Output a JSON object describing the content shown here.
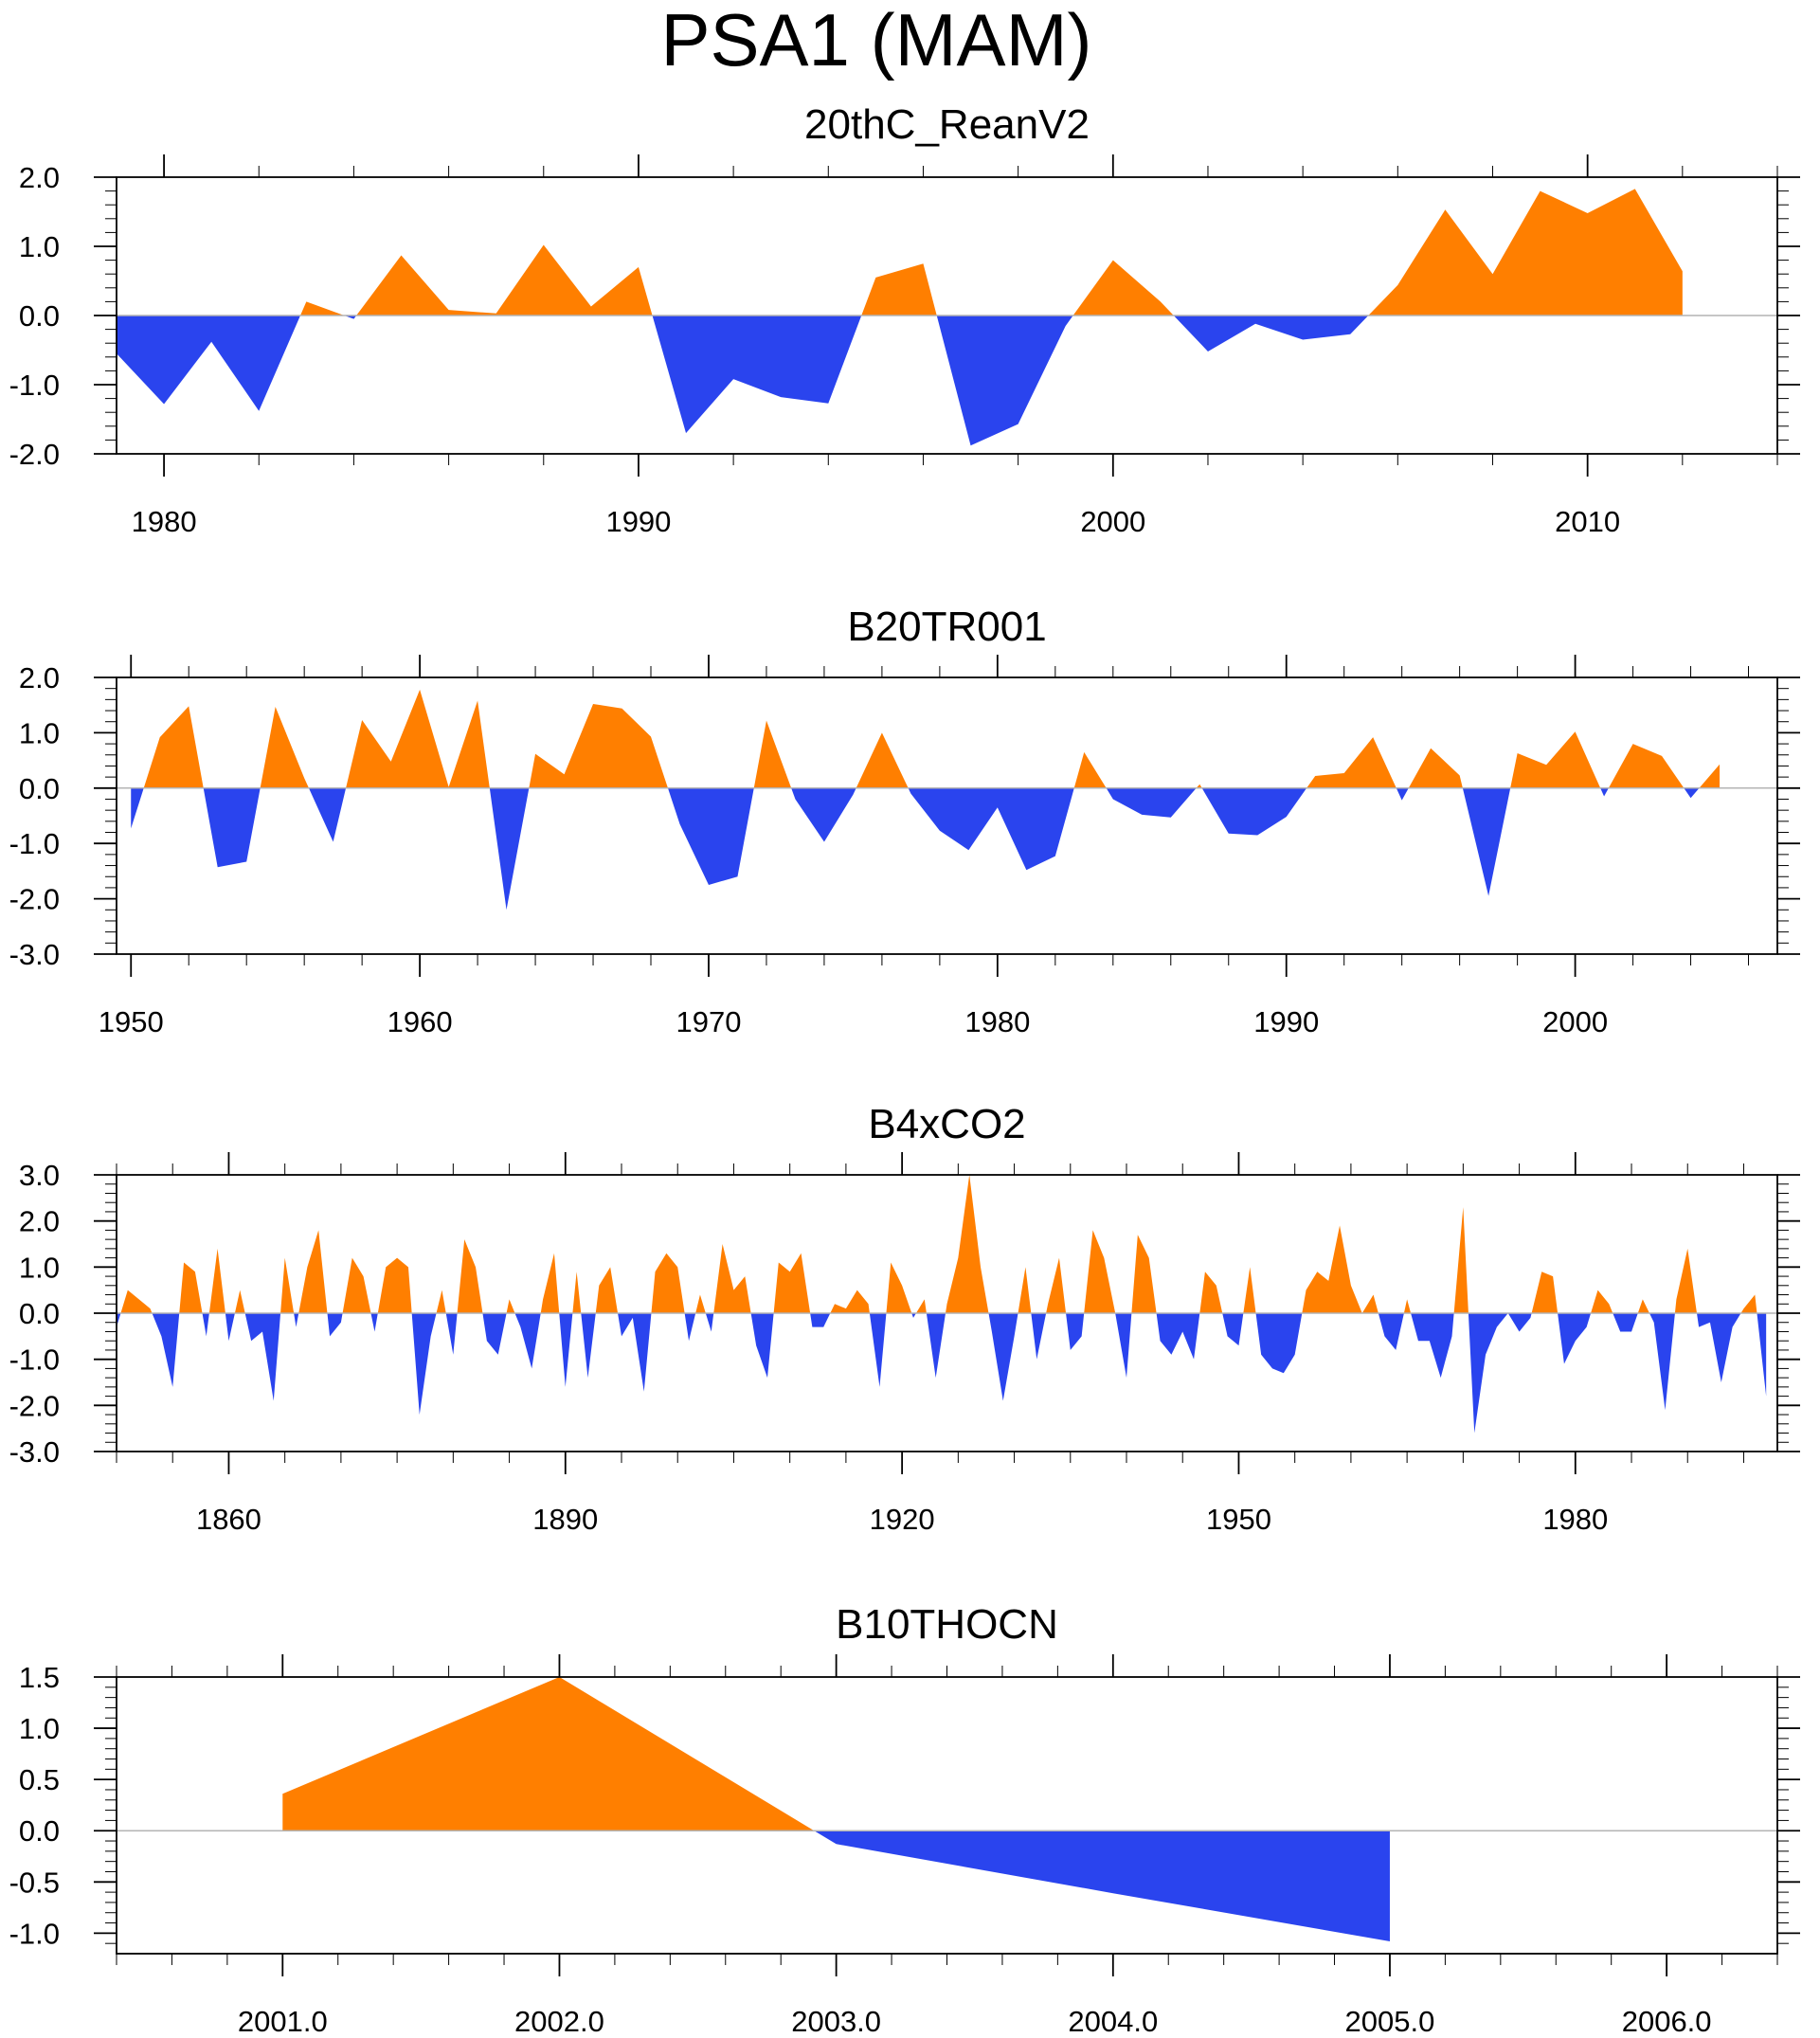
{
  "title": "PSA1 (MAM)",
  "colors": {
    "positive": "#ff7f00",
    "negative": "#2a44ee",
    "frame": "#000000",
    "zero_line": "#b4b4b4"
  },
  "chart_data": [
    {
      "type": "area",
      "title": "20thC_ReanV2",
      "xlabel": "",
      "ylabel": "",
      "xlim": [
        1979,
        2014
      ],
      "ylim": [
        -2.0,
        2.0
      ],
      "x_ticks": [
        1980,
        1990,
        2000,
        2010
      ],
      "x_tick_labels": [
        "1980",
        "1990",
        "2000",
        "2010"
      ],
      "x_minor_step": 2,
      "y_ticks": [
        -2.0,
        -1.0,
        0.0,
        1.0,
        2.0
      ],
      "y_tick_labels": [
        "-2.0",
        "-1.0",
        "0.0",
        "1.0",
        "2.0"
      ],
      "y_minor_step": 0.2,
      "x": [
        1979,
        1980,
        1981,
        1982,
        1983,
        1984,
        1985,
        1986,
        1987,
        1988,
        1989,
        1990,
        1991,
        1992,
        1993,
        1994,
        1995,
        1996,
        1997,
        1998,
        1999,
        2000,
        2001,
        2002,
        2003,
        2004,
        2005,
        2006,
        2007,
        2008,
        2009,
        2010,
        2011,
        2012
      ],
      "values": [
        -0.55,
        -1.28,
        -0.38,
        -1.38,
        0.2,
        -0.05,
        0.87,
        0.08,
        0.03,
        1.02,
        0.13,
        0.7,
        -1.7,
        -0.92,
        -1.18,
        -1.27,
        0.55,
        0.75,
        -1.88,
        -1.57,
        -0.15,
        0.8,
        0.2,
        -0.52,
        -0.12,
        -0.35,
        -0.27,
        0.44,
        1.53,
        0.6,
        1.8,
        1.48,
        1.83,
        0.64
      ]
    },
    {
      "type": "area",
      "title": "B20TR001",
      "xlabel": "",
      "ylabel": "",
      "xlim": [
        1949.5,
        2007
      ],
      "ylim": [
        -3.0,
        2.0
      ],
      "x_ticks": [
        1950,
        1960,
        1970,
        1980,
        1990,
        2000
      ],
      "x_tick_labels": [
        "1950",
        "1960",
        "1970",
        "1980",
        "1990",
        "2000"
      ],
      "x_minor_step": 2,
      "y_ticks": [
        -3.0,
        -2.0,
        -1.0,
        0.0,
        1.0,
        2.0
      ],
      "y_tick_labels": [
        "-3.0",
        "-2.0",
        "-1.0",
        "0.0",
        "1.0",
        "2.0"
      ],
      "y_minor_step": 0.2,
      "x": [
        1950,
        1951,
        1952,
        1953,
        1954,
        1955,
        1956,
        1957,
        1958,
        1959,
        1960,
        1961,
        1962,
        1963,
        1964,
        1965,
        1966,
        1967,
        1968,
        1969,
        1970,
        1971,
        1972,
        1973,
        1974,
        1975,
        1976,
        1977,
        1978,
        1979,
        1980,
        1981,
        1982,
        1983,
        1984,
        1985,
        1986,
        1987,
        1988,
        1989,
        1990,
        1991,
        1992,
        1993,
        1994,
        1995,
        1996,
        1997,
        1998,
        1999,
        2000,
        2001,
        2002,
        2003,
        2004,
        2005
      ],
      "values": [
        -0.73,
        0.92,
        1.48,
        -1.43,
        -1.33,
        1.47,
        0.18,
        -0.97,
        1.23,
        0.48,
        1.78,
        0.02,
        1.58,
        -2.2,
        0.62,
        0.25,
        1.52,
        1.44,
        0.93,
        -0.65,
        -1.75,
        -1.6,
        1.22,
        -0.2,
        -0.97,
        -0.12,
        1.0,
        -0.1,
        -0.77,
        -1.12,
        -0.35,
        -1.48,
        -1.23,
        0.65,
        -0.2,
        -0.48,
        -0.53,
        0.07,
        -0.82,
        -0.85,
        -0.52,
        0.22,
        0.27,
        0.92,
        -0.22,
        0.72,
        0.23,
        -1.95,
        0.63,
        0.42,
        1.02,
        -0.15,
        0.8,
        0.58,
        -0.18,
        0.43
      ]
    },
    {
      "type": "area",
      "title": "B4xCO2",
      "xlabel": "",
      "ylabel": "",
      "xlim": [
        1850,
        1998
      ],
      "ylim": [
        -3.0,
        3.0
      ],
      "x_ticks": [
        1860,
        1890,
        1920,
        1950,
        1980
      ],
      "x_tick_labels": [
        "1860",
        "1890",
        "1920",
        "1950",
        "1980"
      ],
      "x_minor_step": 5,
      "y_ticks": [
        -3.0,
        -2.0,
        -1.0,
        0.0,
        1.0,
        2.0,
        3.0
      ],
      "y_tick_labels": [
        "-3.0",
        "-2.0",
        "-1.0",
        "0.0",
        "1.0",
        "2.0",
        "3.0"
      ],
      "y_minor_step": 0.2,
      "x_start": 1850,
      "x_step": 1,
      "values": [
        -0.3,
        0.5,
        0.3,
        0.1,
        -0.5,
        -1.6,
        1.1,
        0.9,
        -0.5,
        1.4,
        -0.6,
        0.5,
        -0.6,
        -0.4,
        -1.9,
        1.2,
        -0.3,
        1.0,
        1.8,
        -0.5,
        -0.2,
        1.2,
        0.8,
        -0.4,
        1.0,
        1.2,
        1.0,
        -2.2,
        -0.5,
        0.5,
        -0.9,
        1.6,
        1.0,
        -0.6,
        -0.9,
        0.3,
        -0.3,
        -1.2,
        0.3,
        1.3,
        -1.6,
        0.9,
        -1.4,
        0.6,
        1.0,
        -0.5,
        -0.1,
        -1.7,
        0.9,
        1.3,
        1.0,
        -0.6,
        0.4,
        -0.4,
        1.5,
        0.5,
        0.8,
        -0.7,
        -1.4,
        1.1,
        0.9,
        1.3,
        -0.3,
        -0.3,
        0.2,
        0.1,
        0.5,
        0.2,
        -1.6,
        1.1,
        0.6,
        -0.1,
        0.3,
        -1.4,
        0.2,
        1.2,
        3.0,
        1.0,
        -0.4,
        -1.9,
        -0.5,
        1.0,
        -1.0,
        0.2,
        1.2,
        -0.8,
        -0.5,
        1.8,
        1.2,
        0.0,
        -1.4,
        1.7,
        1.2,
        -0.6,
        -0.9,
        -0.4,
        -1.0,
        0.9,
        0.6,
        -0.5,
        -0.7,
        1.0,
        -0.9,
        -1.2,
        -1.3,
        -0.9,
        0.5,
        0.9,
        0.7,
        1.9,
        0.6,
        0.0,
        0.4,
        -0.5,
        -0.8,
        0.3,
        -0.6,
        -0.6,
        -1.4,
        -0.5,
        2.3,
        -2.6,
        -0.9,
        -0.3,
        0.0,
        -0.4,
        -0.1,
        0.9,
        0.8,
        -1.1,
        -0.6,
        -0.3,
        0.5,
        0.2,
        -0.4,
        -0.4,
        0.3,
        -0.2,
        -2.1,
        0.3,
        1.4,
        -0.3,
        -0.2,
        -1.5,
        -0.3,
        0.1,
        0.4,
        -1.8
      ]
    },
    {
      "type": "area",
      "title": "B10THOCN",
      "xlabel": "",
      "ylabel": "",
      "xlim": [
        2000.4,
        2006.4
      ],
      "ylim": [
        -1.2,
        1.5
      ],
      "x_ticks": [
        2001,
        2002,
        2003,
        2004,
        2005,
        2006
      ],
      "x_tick_labels": [
        "2001.0",
        "2002.0",
        "2003.0",
        "2004.0",
        "2005.0",
        "2006.0"
      ],
      "x_minor_step": 0.2,
      "y_ticks": [
        -1.0,
        -0.5,
        0.0,
        0.5,
        1.0,
        1.5
      ],
      "y_tick_labels": [
        "-1.0",
        "-0.5",
        "0.0",
        "0.5",
        "1.0",
        "1.5"
      ],
      "y_minor_step": 0.1,
      "x": [
        2001,
        2002,
        2003,
        2004,
        2005
      ],
      "values": [
        0.36,
        1.5,
        -0.13,
        -0.61,
        -1.08
      ]
    }
  ]
}
